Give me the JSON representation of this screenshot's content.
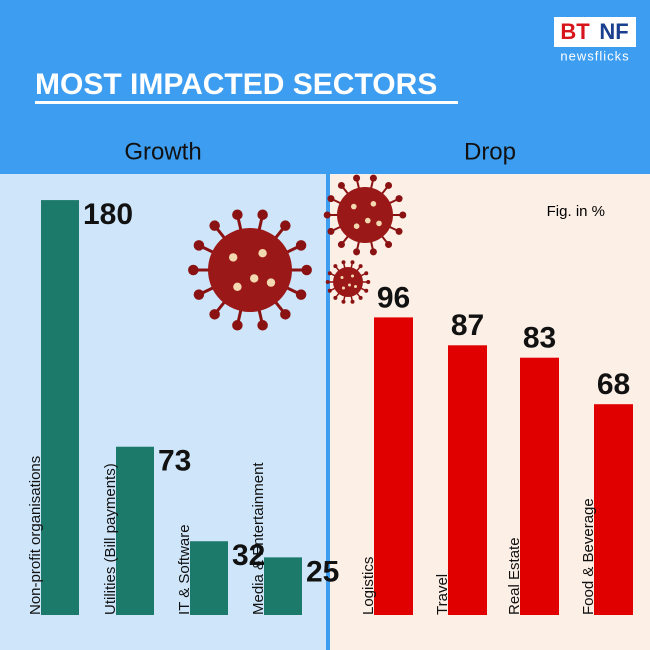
{
  "header": {
    "title": "MOST IMPACTED SECTORS",
    "logo_left": "BT",
    "logo_right": "NF",
    "logo_sub": "newsflicks"
  },
  "note": "Fig. in %",
  "chart_data": [
    {
      "type": "bar",
      "title": "Growth",
      "categories": [
        "Non-profit organisations",
        "Utilities (Bill payments)",
        "IT & Software",
        "Media & Entertainment"
      ],
      "values": [
        180,
        73,
        32,
        25
      ],
      "color": "#1b7a6a",
      "ylim": [
        0,
        200
      ]
    },
    {
      "type": "bar",
      "title": "Drop",
      "categories": [
        "Logistics",
        "Travel",
        "Real Estate",
        "Food & Beverage"
      ],
      "values": [
        96,
        87,
        83,
        68
      ],
      "color": "#e00000",
      "ylim": [
        0,
        100
      ]
    }
  ]
}
